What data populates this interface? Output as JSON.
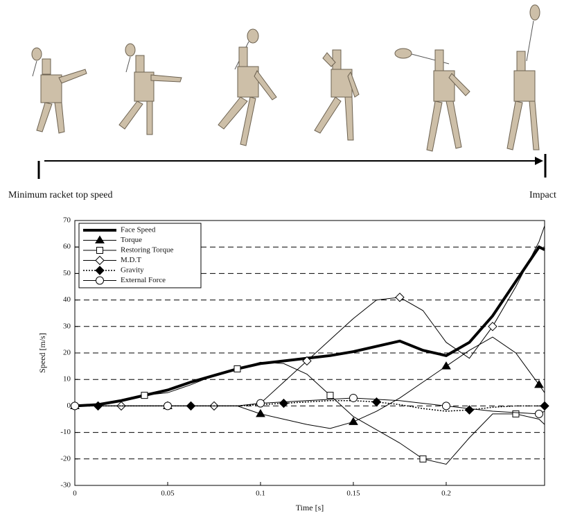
{
  "chart_data": {
    "type": "line",
    "annotations": [
      "Minimum racket top speed",
      "Impact"
    ],
    "xlabel": "Time [s]",
    "ylabel": "Speed [m/s]",
    "x": [
      0,
      0.0125,
      0.025,
      0.0375,
      0.05,
      0.0625,
      0.075,
      0.0875,
      0.1,
      0.1125,
      0.125,
      0.1375,
      0.15,
      0.1625,
      0.175,
      0.1875,
      0.2,
      0.2125,
      0.225,
      0.2375,
      0.25,
      0.253
    ],
    "series": [
      {
        "name": "Face Speed",
        "color": "#000000",
        "marker": "none",
        "width": 4,
        "values": [
          0,
          0.5,
          2,
          4,
          6,
          9,
          11.5,
          14,
          16,
          17,
          18,
          19,
          20.5,
          22.5,
          24.5,
          21,
          19,
          24,
          34,
          47,
          60,
          59
        ]
      },
      {
        "name": "Torque",
        "color": "#000000",
        "marker": "triangle",
        "width": 1,
        "values": [
          0,
          0,
          0,
          0,
          0,
          0,
          0,
          0,
          -3,
          -5,
          -7,
          -8.5,
          -6,
          -2,
          3,
          9,
          15,
          21,
          26,
          20,
          8,
          5
        ]
      },
      {
        "name": "Restoring Torque",
        "color": "#000000",
        "marker": "square",
        "width": 1,
        "values": [
          0,
          0.5,
          2,
          4,
          5,
          8,
          11.5,
          14,
          16.5,
          16,
          12,
          4,
          -4,
          -9,
          -14,
          -20,
          -22,
          -12,
          -3,
          -3,
          -5,
          -7
        ]
      },
      {
        "name": "M.D.T",
        "color": "#000000",
        "marker": "diamond",
        "width": 1,
        "values": [
          0,
          0,
          0,
          0,
          0,
          0,
          0,
          0,
          1,
          9,
          17,
          25,
          33,
          40,
          41,
          36,
          24,
          18,
          30,
          45,
          62,
          68
        ]
      },
      {
        "name": "Gravity",
        "color": "#000000",
        "marker": "diamond-filled",
        "width": 1.5,
        "dash": true,
        "values": [
          0,
          0,
          0,
          0,
          0,
          0,
          0,
          0,
          0.5,
          1,
          1.5,
          2,
          2,
          1.5,
          0.5,
          -1,
          -2,
          -1.5,
          -0.5,
          0,
          0,
          0
        ]
      },
      {
        "name": "External Force",
        "color": "#000000",
        "marker": "circle",
        "width": 1,
        "values": [
          0,
          0,
          0,
          0,
          0,
          0,
          0,
          0,
          1,
          1.5,
          2,
          2.5,
          3,
          2.5,
          2,
          1,
          0,
          -1,
          -2,
          -2.5,
          -3,
          -2
        ]
      }
    ],
    "xlim": [
      0,
      0.253
    ],
    "ylim": [
      -30,
      70
    ],
    "xticks": [
      0,
      0.05,
      0.1,
      0.15,
      0.2
    ],
    "yticks": [
      -30,
      -20,
      -10,
      0,
      10,
      20,
      30,
      40,
      50,
      60,
      70
    ],
    "grid": true,
    "legend": "upper-left"
  }
}
